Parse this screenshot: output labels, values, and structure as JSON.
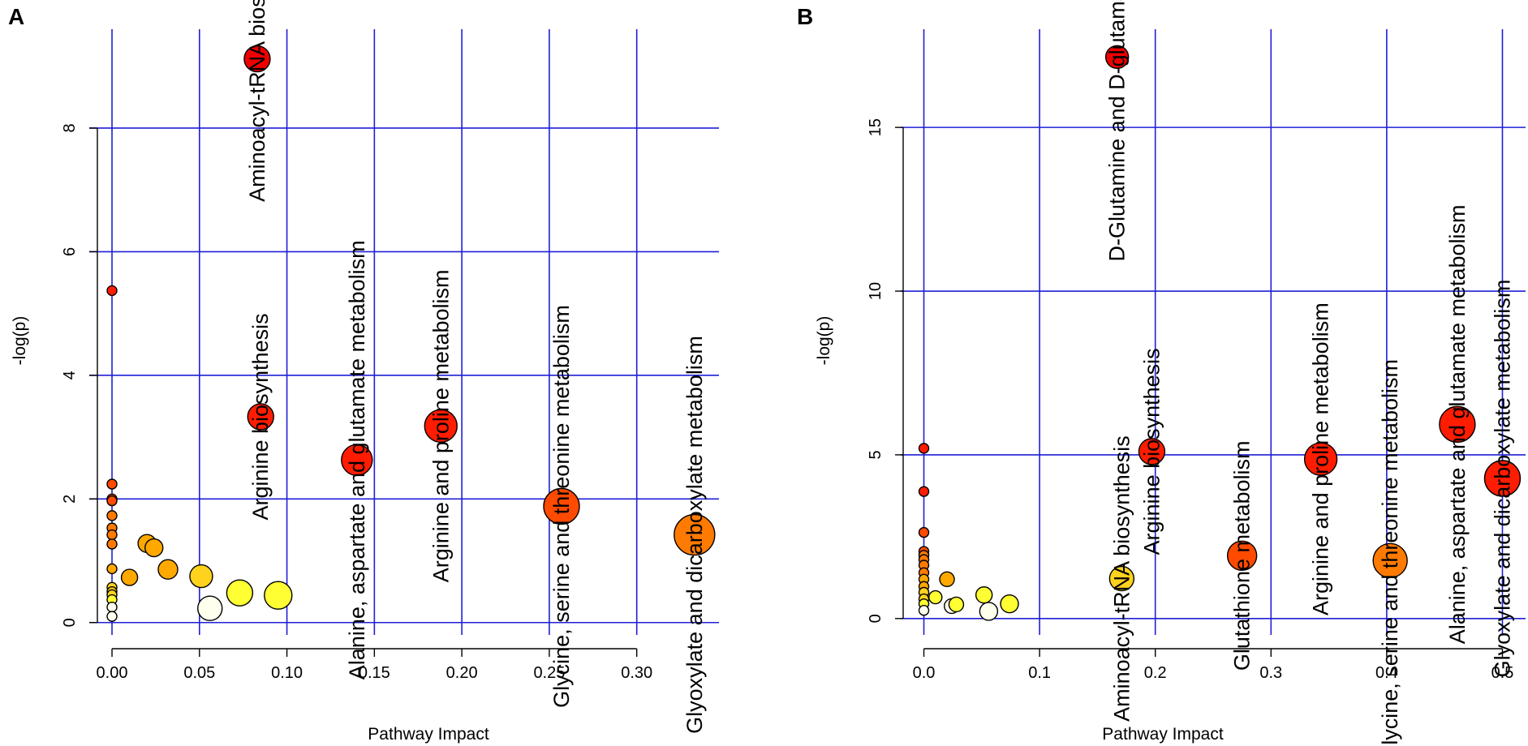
{
  "colors": {
    "grid": "#1f1fd6",
    "axis": "#000000",
    "point_stroke": "#000000",
    "scale": [
      "#ffffee",
      "#ffff33",
      "#ffd21e",
      "#ffa800",
      "#ff7a00",
      "#ff4a00",
      "#ff1c00",
      "#ee0000"
    ]
  },
  "chart_data": [
    {
      "type": "scatter",
      "panel_label": "A",
      "xlabel": "Pathway Impact",
      "ylabel": "-log(p)",
      "xlim": [
        -0.013,
        0.347
      ],
      "ylim": [
        -0.2,
        9.6
      ],
      "x_ticks": [
        0.0,
        0.05,
        0.1,
        0.15,
        0.2,
        0.25,
        0.3
      ],
      "x_tick_labels": [
        "0.00",
        "0.05",
        "0.10",
        "0.15",
        "0.20",
        "0.25",
        "0.30"
      ],
      "y_ticks": [
        0,
        2,
        4,
        6,
        8
      ],
      "y_tick_labels": [
        "0",
        "2",
        "4",
        "6",
        "8"
      ],
      "grid": true,
      "points": [
        {
          "x": 0.0,
          "y": 5.37,
          "r": 6,
          "c": 6
        },
        {
          "x": 0.0,
          "y": 2.24,
          "r": 6,
          "c": 5
        },
        {
          "x": 0.0,
          "y": 2.0,
          "r": 6,
          "c": 5
        },
        {
          "x": 0.0,
          "y": 1.97,
          "r": 6,
          "c": 5
        },
        {
          "x": 0.0,
          "y": 1.73,
          "r": 6,
          "c": 4
        },
        {
          "x": 0.0,
          "y": 1.53,
          "r": 6,
          "c": 4
        },
        {
          "x": 0.0,
          "y": 1.42,
          "r": 6,
          "c": 4
        },
        {
          "x": 0.0,
          "y": 1.27,
          "r": 6,
          "c": 4
        },
        {
          "x": 0.0,
          "y": 0.87,
          "r": 6,
          "c": 3
        },
        {
          "x": 0.0,
          "y": 0.57,
          "r": 6,
          "c": 2
        },
        {
          "x": 0.0,
          "y": 0.5,
          "r": 6,
          "c": 2
        },
        {
          "x": 0.0,
          "y": 0.45,
          "r": 6,
          "c": 2
        },
        {
          "x": 0.0,
          "y": 0.37,
          "r": 6,
          "c": 1
        },
        {
          "x": 0.0,
          "y": 0.25,
          "r": 6,
          "c": 0
        },
        {
          "x": 0.0,
          "y": 0.1,
          "r": 6,
          "c": 0
        },
        {
          "x": 0.01,
          "y": 0.73,
          "r": 10,
          "c": 3
        },
        {
          "x": 0.02,
          "y": 1.28,
          "r": 11,
          "c": 3
        },
        {
          "x": 0.024,
          "y": 1.21,
          "r": 11,
          "c": 3
        },
        {
          "x": 0.032,
          "y": 0.86,
          "r": 12,
          "c": 3
        },
        {
          "x": 0.051,
          "y": 0.75,
          "r": 14,
          "c": 2
        },
        {
          "x": 0.056,
          "y": 0.23,
          "r": 15,
          "c": 0
        },
        {
          "x": 0.073,
          "y": 0.48,
          "r": 16,
          "c": 1
        },
        {
          "x": 0.095,
          "y": 0.44,
          "r": 17,
          "c": 1
        },
        {
          "x": 0.083,
          "y": 9.12,
          "r": 16,
          "c": 7,
          "label": "Aminoacyl-tRNA biosynthesis"
        },
        {
          "x": 0.085,
          "y": 3.33,
          "r": 16,
          "c": 6,
          "label": "Arginine biosynthesis"
        },
        {
          "x": 0.14,
          "y": 2.63,
          "r": 19,
          "c": 6,
          "label": "Alanine, aspartate and glutamate metabolism"
        },
        {
          "x": 0.188,
          "y": 3.18,
          "r": 20,
          "c": 6,
          "label": "Arginine and proline metabolism"
        },
        {
          "x": 0.257,
          "y": 1.88,
          "r": 22,
          "c": 5,
          "label": "Glycine, serine and threonine metabolism"
        },
        {
          "x": 0.333,
          "y": 1.42,
          "r": 25,
          "c": 4,
          "label": "Glyoxylate and dicarboxylate metabolism"
        }
      ]
    },
    {
      "type": "scatter",
      "panel_label": "B",
      "xlabel": "Pathway Impact",
      "ylabel": "-log(p)",
      "xlim": [
        -0.02,
        0.52
      ],
      "ylim": [
        -0.5,
        18.0
      ],
      "x_ticks": [
        0.0,
        0.1,
        0.2,
        0.3,
        0.4,
        0.5
      ],
      "x_tick_labels": [
        "0.0",
        "0.1",
        "0.2",
        "0.3",
        "0.4",
        "0.5"
      ],
      "y_ticks": [
        0,
        5,
        10,
        15
      ],
      "y_tick_labels": [
        "0",
        "5",
        "10",
        "15"
      ],
      "grid": true,
      "points": [
        {
          "x": 0.0,
          "y": 5.2,
          "r": 6,
          "c": 6
        },
        {
          "x": 0.0,
          "y": 3.88,
          "r": 6,
          "c": 6
        },
        {
          "x": 0.0,
          "y": 2.63,
          "r": 6,
          "c": 5
        },
        {
          "x": 0.0,
          "y": 2.05,
          "r": 6,
          "c": 5
        },
        {
          "x": 0.0,
          "y": 1.93,
          "r": 6,
          "c": 4
        },
        {
          "x": 0.0,
          "y": 1.8,
          "r": 6,
          "c": 4
        },
        {
          "x": 0.0,
          "y": 1.63,
          "r": 6,
          "c": 4
        },
        {
          "x": 0.0,
          "y": 1.4,
          "r": 6,
          "c": 4
        },
        {
          "x": 0.0,
          "y": 1.2,
          "r": 6,
          "c": 3
        },
        {
          "x": 0.0,
          "y": 0.98,
          "r": 6,
          "c": 3
        },
        {
          "x": 0.0,
          "y": 0.8,
          "r": 6,
          "c": 2
        },
        {
          "x": 0.0,
          "y": 0.6,
          "r": 6,
          "c": 2
        },
        {
          "x": 0.0,
          "y": 0.45,
          "r": 6,
          "c": 1
        },
        {
          "x": 0.0,
          "y": 0.25,
          "r": 6,
          "c": 0
        },
        {
          "x": 0.01,
          "y": 0.65,
          "r": 8,
          "c": 1
        },
        {
          "x": 0.02,
          "y": 1.2,
          "r": 9,
          "c": 3
        },
        {
          "x": 0.024,
          "y": 0.38,
          "r": 9,
          "c": 0
        },
        {
          "x": 0.028,
          "y": 0.43,
          "r": 9,
          "c": 1
        },
        {
          "x": 0.052,
          "y": 0.72,
          "r": 10,
          "c": 1
        },
        {
          "x": 0.056,
          "y": 0.22,
          "r": 11,
          "c": 0
        },
        {
          "x": 0.074,
          "y": 0.45,
          "r": 11,
          "c": 1
        },
        {
          "x": 0.167,
          "y": 17.15,
          "r": 14,
          "c": 7,
          "label": "D-Glutamine and D-glutamate metabolism"
        },
        {
          "x": 0.171,
          "y": 1.22,
          "r": 15,
          "c": 2,
          "label": "Aminoacyl-tRNA biosynthesis"
        },
        {
          "x": 0.197,
          "y": 5.1,
          "r": 16,
          "c": 6,
          "label": "Arginine biosynthesis"
        },
        {
          "x": 0.275,
          "y": 1.92,
          "r": 18,
          "c": 5,
          "label": "Glutathione metabolism"
        },
        {
          "x": 0.343,
          "y": 4.87,
          "r": 20,
          "c": 6,
          "label": "Arginine and proline metabolism"
        },
        {
          "x": 0.403,
          "y": 1.77,
          "r": 21,
          "c": 4,
          "label": "Glycine, serine and threonine metabolism"
        },
        {
          "x": 0.461,
          "y": 5.93,
          "r": 22,
          "c": 6,
          "label": "Alanine, aspartate and glutamate metabolism"
        },
        {
          "x": 0.5,
          "y": 4.28,
          "r": 22,
          "c": 6,
          "label": "Glyoxylate and dicarboxylate metabolism"
        }
      ]
    }
  ]
}
